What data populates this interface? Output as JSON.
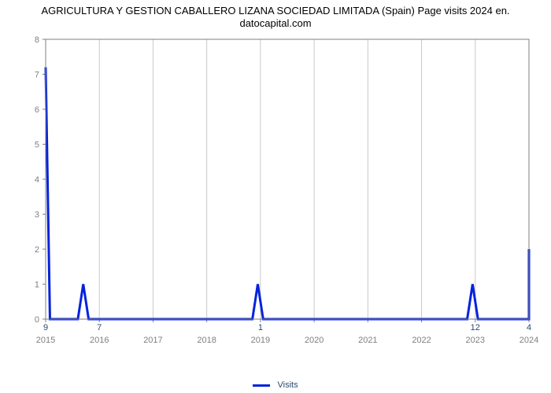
{
  "chart": {
    "type": "line",
    "title_line1": "AGRICULTURA Y GESTION CABALLERO LIZANA SOCIEDAD LIMITADA (Spain) Page visits 2024 en.",
    "title_line2": "datocapital.com",
    "title_fontsize": 13,
    "title_color": "#000000",
    "background_color": "#ffffff",
    "plot_background": "#ffffff",
    "grid_color": "#c9c9c9",
    "grid_width": 1,
    "border_color": "#7f7f7f",
    "axis_tick_color": "#808080",
    "axis_label_color": "#808080",
    "axis_label_fontsize": 11,
    "secondary_label_color": "#274b72",
    "series_color": "#0522dd",
    "series_width": 3,
    "ylim": [
      0,
      8
    ],
    "yticks": [
      0,
      1,
      2,
      3,
      4,
      5,
      6,
      7,
      8
    ],
    "x_categories": [
      "2015",
      "2016",
      "2017",
      "2018",
      "2019",
      "2020",
      "2021",
      "2022",
      "2023",
      "2024"
    ],
    "secondary_x_labels": [
      "9",
      "7",
      "",
      "",
      "1",
      "",
      "",
      "",
      "12",
      "4"
    ],
    "data": [
      {
        "x": 0.0,
        "y": 7.2
      },
      {
        "x": 0.08,
        "y": 0.0
      },
      {
        "x": 0.6,
        "y": 0.0
      },
      {
        "x": 0.7,
        "y": 1.0
      },
      {
        "x": 0.8,
        "y": 0.0
      },
      {
        "x": 3.85,
        "y": 0.0
      },
      {
        "x": 3.95,
        "y": 1.0
      },
      {
        "x": 4.05,
        "y": 0.0
      },
      {
        "x": 7.85,
        "y": 0.0
      },
      {
        "x": 7.95,
        "y": 1.0
      },
      {
        "x": 8.05,
        "y": 0.0
      },
      {
        "x": 9.0,
        "y": 0.0
      },
      {
        "x": 9.0,
        "y": 2.0
      }
    ],
    "legend_label": "Visits",
    "legend_color": "#274b72"
  }
}
